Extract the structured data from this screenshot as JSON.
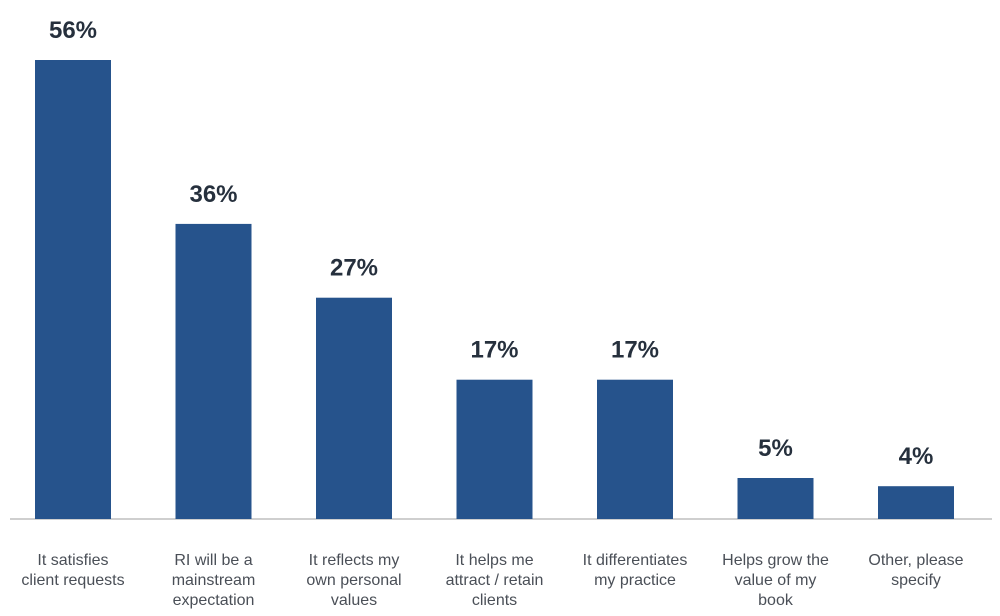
{
  "chart_data": {
    "type": "bar",
    "title": "",
    "xlabel": "",
    "ylabel": "",
    "ylim": [
      0,
      56
    ],
    "grid": false,
    "bar_color": "#26538c",
    "label_color": "#26303d",
    "category_color": "#4a4f57",
    "categories": [
      [
        "It satisfies",
        "client requests"
      ],
      [
        "RI will be a",
        "mainstream",
        "expectation"
      ],
      [
        "It reflects my",
        "own personal",
        "values"
      ],
      [
        "It helps me",
        "attract / retain",
        "clients"
      ],
      [
        "It differentiates",
        "my practice"
      ],
      [
        "Helps grow the",
        "value of my",
        "book"
      ],
      [
        "Other, please",
        "specify"
      ]
    ],
    "values": [
      56,
      36,
      27,
      17,
      17,
      5,
      4
    ],
    "value_labels": [
      "56%",
      "36%",
      "27%",
      "17%",
      "17%",
      "5%",
      "4%"
    ]
  }
}
